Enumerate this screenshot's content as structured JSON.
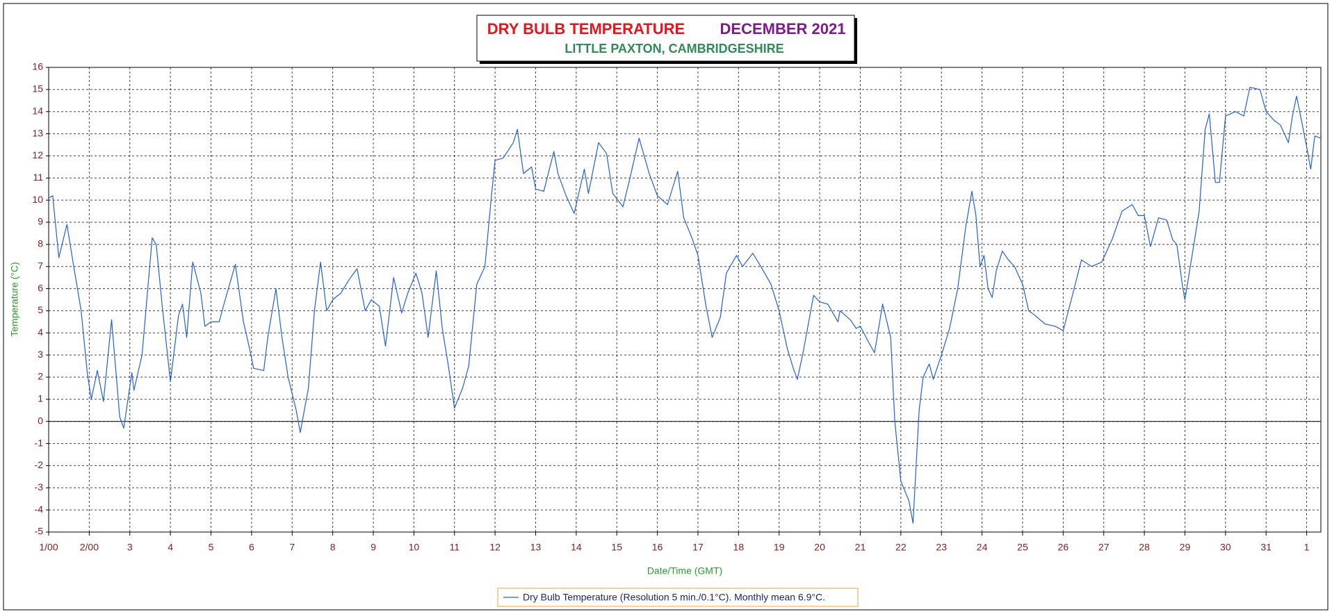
{
  "chart_data": {
    "type": "line",
    "title": "DRY BULB TEMPERATURE",
    "title_date": "DECEMBER 2021",
    "subtitle": "LITTLE PAXTON, CAMBRIDGESHIRE",
    "y_label": "Temperature (°C)",
    "x_label": "Date/Time (GMT)",
    "grid": true,
    "xlim": [
      0,
      31.35
    ],
    "ylim": [
      -5,
      16
    ],
    "yticks": [
      -5,
      -4,
      -3,
      -2,
      -1,
      0,
      1,
      2,
      3,
      4,
      5,
      6,
      7,
      8,
      9,
      10,
      11,
      12,
      13,
      14,
      15,
      16
    ],
    "xticks": [
      {
        "value": 0,
        "label": "1/00"
      },
      {
        "value": 1,
        "label": "2/00"
      },
      2,
      3,
      4,
      5,
      6,
      7,
      8,
      9,
      10,
      11,
      12,
      13,
      14,
      15,
      16,
      17,
      18,
      19,
      20,
      21,
      22,
      23,
      24,
      25,
      26,
      27,
      28,
      29,
      30,
      31
    ],
    "xtick_labels": [
      "1/00",
      "2/00",
      "3",
      "4",
      "5",
      "6",
      "7",
      "8",
      "9",
      "10",
      "11",
      "12",
      "13",
      "14",
      "15",
      "16",
      "17",
      "18",
      "19",
      "20",
      "21",
      "22",
      "23",
      "24",
      "25",
      "26",
      "27",
      "28",
      "29",
      "30",
      "31",
      "1"
    ],
    "x": [
      0.0,
      0.1,
      0.25,
      0.45,
      0.6,
      0.8,
      0.95,
      1.05,
      1.2,
      1.35,
      1.55,
      1.75,
      1.85,
      2.05,
      2.1,
      2.3,
      2.55,
      2.65,
      2.8,
      3.0,
      3.2,
      3.3,
      3.4,
      3.55,
      3.75,
      3.85,
      4.0,
      4.2,
      4.35,
      4.6,
      4.8,
      4.95,
      5.05,
      5.3,
      5.4,
      5.6,
      5.75,
      5.9,
      6.1,
      6.2,
      6.4,
      6.55,
      6.7,
      6.85,
      7.0,
      7.2,
      7.4,
      7.6,
      7.8,
      7.95,
      8.15,
      8.3,
      8.5,
      8.7,
      8.85,
      9.05,
      9.2,
      9.35,
      9.55,
      9.7,
      9.85,
      10.0,
      10.2,
      10.35,
      10.55,
      10.75,
      10.9,
      11.0,
      11.2,
      11.45,
      11.55,
      11.7,
      11.9,
      12.0,
      12.2,
      12.45,
      12.55,
      12.75,
      12.95,
      13.2,
      13.3,
      13.55,
      13.75,
      13.9,
      14.15,
      14.3,
      14.55,
      14.8,
      15.0,
      15.25,
      15.5,
      15.65,
      15.85,
      16.0,
      16.2,
      16.35,
      16.55,
      16.7,
      16.95,
      17.1,
      17.35,
      17.55,
      17.8,
      18.0,
      18.2,
      18.35,
      18.45,
      18.6,
      18.85,
      19.0,
      19.2,
      19.45,
      19.5,
      19.75,
      19.9,
      20.0,
      20.2,
      20.35,
      20.55,
      20.75,
      20.85,
      21.0,
      21.2,
      21.3,
      21.45,
      21.55,
      21.7,
      21.8,
      22.0,
      22.2,
      22.4,
      22.6,
      22.75,
      22.85,
      22.95,
      23.05,
      23.15,
      23.25,
      23.35,
      23.5,
      23.65,
      23.8,
      24.0,
      24.15,
      24.3,
      24.55,
      24.8,
      25.0,
      25.2,
      25.45,
      25.7,
      25.95,
      26.2,
      26.45,
      26.7,
      26.85,
      27.0,
      27.15,
      27.35,
      27.55,
      27.7,
      27.8,
      27.95,
      28.0,
      28.15,
      28.35,
      28.5,
      28.6,
      28.75,
      28.85,
      29.0,
      29.25,
      29.45,
      29.6,
      29.85,
      30.0,
      30.2,
      30.35,
      30.55,
      30.65,
      30.75,
      30.85,
      31.0,
      31.1,
      31.2,
      31.35
    ],
    "series": [
      {
        "name": "Dry Bulb Temperature (Resolution 5 min./0.1°C). Monthly mean 6.9°C.",
        "color": "#1f5fe0",
        "values": [
          10.1,
          10.2,
          7.4,
          8.9,
          7.2,
          5.0,
          2.2,
          1.0,
          2.3,
          0.9,
          4.6,
          0.2,
          -0.3,
          2.2,
          1.4,
          3.0,
          8.3,
          8.0,
          5.2,
          1.8,
          4.8,
          5.3,
          3.8,
          7.2,
          5.8,
          4.3,
          4.5,
          4.5,
          5.5,
          7.1,
          4.5,
          3.3,
          2.4,
          2.3,
          3.8,
          6.0,
          3.8,
          2.0,
          0.5,
          -0.5,
          1.5,
          5.0,
          7.2,
          5.0,
          5.5,
          5.8,
          6.4,
          6.9,
          5.0,
          5.5,
          5.2,
          3.4,
          6.5,
          4.9,
          5.8,
          6.7,
          5.8,
          3.8,
          6.8,
          4.2,
          2.5,
          0.6,
          1.5,
          2.5,
          6.2,
          7.0,
          10.0,
          11.8,
          11.9,
          12.6,
          13.2,
          11.2,
          11.5,
          10.5,
          10.4,
          12.2,
          11.2,
          10.2,
          9.4,
          11.4,
          10.3,
          12.6,
          12.1,
          10.3,
          9.7,
          10.8,
          12.8,
          11.2,
          10.2,
          9.8,
          11.3,
          9.2,
          8.3,
          7.5,
          5.2,
          3.8,
          4.7,
          6.7,
          7.5,
          7.0,
          7.6,
          7.0,
          6.2,
          5.0,
          3.3,
          2.4,
          1.9,
          3.2,
          5.7,
          5.4,
          5.3,
          4.5,
          5.0,
          4.6,
          4.2,
          4.3,
          3.6,
          3.1,
          5.3,
          3.8,
          0.0,
          -2.7,
          -3.6,
          -4.6,
          0.5,
          2.0,
          2.6,
          1.9,
          3.0,
          4.2,
          6.0,
          8.8,
          10.4,
          9.3,
          7.0,
          7.5,
          6.0,
          5.6,
          6.8,
          7.7,
          7.3,
          7.0,
          6.2,
          5.0,
          4.8,
          4.4,
          4.3,
          4.1,
          5.5,
          7.3,
          7.0,
          7.2,
          8.2,
          9.5,
          9.8,
          9.3,
          9.3,
          7.9,
          9.2,
          9.1,
          8.2,
          8.0,
          6.0,
          5.5,
          7.2,
          9.5,
          13.2,
          13.9,
          10.8,
          10.8,
          13.8,
          14.0,
          13.8,
          15.1,
          15.0,
          14.0,
          13.6,
          13.4,
          12.6,
          13.8,
          14.7,
          13.8,
          12.4,
          11.4,
          12.9,
          12.8
        ]
      }
    ]
  }
}
